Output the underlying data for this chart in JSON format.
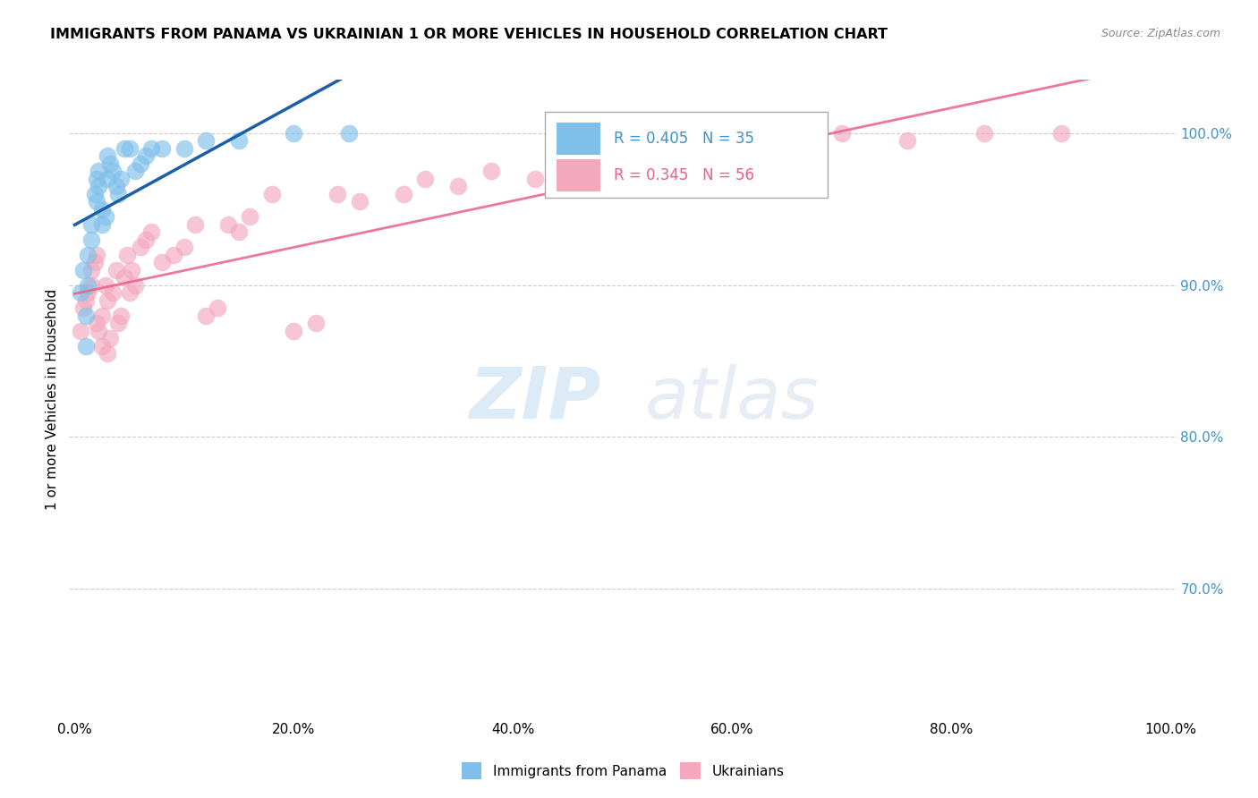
{
  "title": "IMMIGRANTS FROM PANAMA VS UKRAINIAN 1 OR MORE VEHICLES IN HOUSEHOLD CORRELATION CHART",
  "source": "Source: ZipAtlas.com",
  "ylabel": "1 or more Vehicles in Household",
  "ytick_values": [
    0.7,
    0.8,
    0.9,
    1.0
  ],
  "ytick_labels": [
    "70.0%",
    "80.0%",
    "90.0%",
    "100.0%"
  ],
  "ymax": 1.035,
  "ymin": 0.615,
  "xmin": -0.005,
  "xmax": 1.005,
  "xtick_values": [
    0.0,
    0.2,
    0.4,
    0.6,
    0.8,
    1.0
  ],
  "xtick_labels": [
    "0.0%",
    "20.0%",
    "40.0%",
    "60.0%",
    "80.0%",
    "100.0%"
  ],
  "legend1_label": "Immigrants from Panama",
  "legend2_label": "Ukrainians",
  "R1": 0.405,
  "N1": 35,
  "R2": 0.345,
  "N2": 56,
  "color_blue": "#7fbfea",
  "color_pink": "#f4a8be",
  "color_blue_line": "#1a5fa8",
  "color_pink_line": "#e8608a",
  "color_blue_text": "#4292c6",
  "color_pink_text": "#e8608a",
  "color_right_axis": "#4292c6",
  "watermark_zip": "ZIP",
  "watermark_atlas": "atlas",
  "panama_x": [
    0.005,
    0.008,
    0.01,
    0.01,
    0.012,
    0.012,
    0.015,
    0.015,
    0.018,
    0.02,
    0.02,
    0.022,
    0.022,
    0.025,
    0.025,
    0.028,
    0.03,
    0.03,
    0.032,
    0.035,
    0.038,
    0.04,
    0.042,
    0.045,
    0.05,
    0.055,
    0.06,
    0.065,
    0.07,
    0.08,
    0.1,
    0.12,
    0.15,
    0.2,
    0.25
  ],
  "panama_y": [
    0.895,
    0.91,
    0.88,
    0.86,
    0.9,
    0.92,
    0.94,
    0.93,
    0.96,
    0.955,
    0.97,
    0.965,
    0.975,
    0.95,
    0.94,
    0.945,
    0.97,
    0.985,
    0.98,
    0.975,
    0.965,
    0.96,
    0.97,
    0.99,
    0.99,
    0.975,
    0.98,
    0.985,
    0.99,
    0.99,
    0.99,
    0.995,
    0.995,
    1.0,
    1.0
  ],
  "ukraine_x": [
    0.005,
    0.008,
    0.01,
    0.012,
    0.015,
    0.015,
    0.018,
    0.02,
    0.02,
    0.022,
    0.025,
    0.025,
    0.028,
    0.03,
    0.03,
    0.032,
    0.035,
    0.038,
    0.04,
    0.042,
    0.045,
    0.048,
    0.05,
    0.052,
    0.055,
    0.06,
    0.065,
    0.07,
    0.08,
    0.09,
    0.1,
    0.11,
    0.12,
    0.13,
    0.14,
    0.15,
    0.16,
    0.18,
    0.2,
    0.22,
    0.24,
    0.26,
    0.3,
    0.32,
    0.35,
    0.38,
    0.42,
    0.46,
    0.5,
    0.54,
    0.6,
    0.65,
    0.7,
    0.76,
    0.83,
    0.9
  ],
  "ukraine_y": [
    0.87,
    0.885,
    0.89,
    0.895,
    0.9,
    0.91,
    0.915,
    0.875,
    0.92,
    0.87,
    0.86,
    0.88,
    0.9,
    0.855,
    0.89,
    0.865,
    0.895,
    0.91,
    0.875,
    0.88,
    0.905,
    0.92,
    0.895,
    0.91,
    0.9,
    0.925,
    0.93,
    0.935,
    0.915,
    0.92,
    0.925,
    0.94,
    0.88,
    0.885,
    0.94,
    0.935,
    0.945,
    0.96,
    0.87,
    0.875,
    0.96,
    0.955,
    0.96,
    0.97,
    0.965,
    0.975,
    0.97,
    0.98,
    0.975,
    1.0,
    0.985,
    0.99,
    1.0,
    0.995,
    1.0,
    1.0
  ]
}
